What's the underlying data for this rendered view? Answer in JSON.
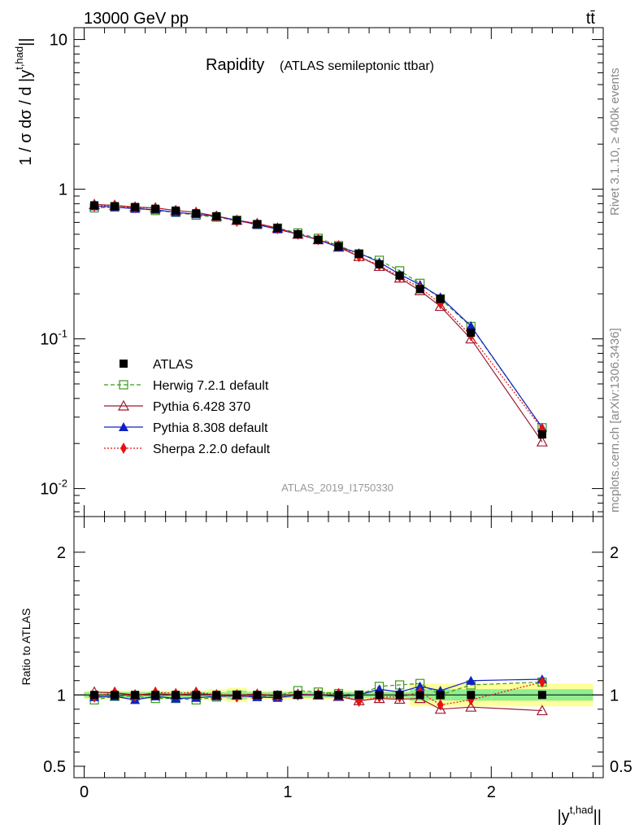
{
  "header": {
    "energy_label": "13000 GeV pp",
    "process_label": "tt̄"
  },
  "side_labels": {
    "rivet": "Rivet 3.1.10, ≥ 400k events",
    "mcplots": "mcplots.cern.ch [arXiv:1306.3436]"
  },
  "colors": {
    "ATLAS": "#000000",
    "Herwig": "#3a9a1a",
    "Pythia6": "#9b1b2f",
    "Pythia8": "#1020c8",
    "Sherpa": "#e81010",
    "band_inner": "#90ee90",
    "band_outer": "#ffff99"
  },
  "chart_data": [
    {
      "type": "line",
      "title": "Rapidity",
      "subtitle": "(ATLAS semileptonic ttbar)",
      "ylabel": "1 / σ dσ / d |y^{t,had}|",
      "xlabel": "",
      "yscale": "log",
      "ylim": [
        0.0065,
        12
      ],
      "xlim": [
        -0.05,
        2.55
      ],
      "ytick_labels": [
        "10^{-2}",
        "10^{-1}",
        "1",
        "10"
      ],
      "watermark": "ATLAS_2019_I1750330",
      "legend_position": "lower-left",
      "x": [
        0.05,
        0.15,
        0.25,
        0.35,
        0.45,
        0.55,
        0.65,
        0.75,
        0.85,
        0.95,
        1.05,
        1.15,
        1.25,
        1.35,
        1.45,
        1.55,
        1.65,
        1.75,
        1.9,
        2.25
      ],
      "series": [
        {
          "name": "ATLAS",
          "marker": "square-filled",
          "values": [
            0.78,
            0.77,
            0.76,
            0.74,
            0.72,
            0.69,
            0.66,
            0.62,
            0.585,
            0.55,
            0.5,
            0.46,
            0.415,
            0.37,
            0.315,
            0.265,
            0.215,
            0.185,
            0.11,
            0.023
          ]
        },
        {
          "name": "Herwig 7.2.1 default",
          "marker": "square-open",
          "dash": "5,3",
          "values": [
            0.75,
            0.76,
            0.75,
            0.72,
            0.7,
            0.67,
            0.65,
            0.62,
            0.58,
            0.55,
            0.51,
            0.47,
            0.42,
            0.37,
            0.335,
            0.285,
            0.235,
            0.185,
            0.121,
            0.0255
          ]
        },
        {
          "name": "Pythia 6.428 370",
          "marker": "triangle-open",
          "values": [
            0.79,
            0.78,
            0.76,
            0.75,
            0.72,
            0.7,
            0.66,
            0.62,
            0.59,
            0.55,
            0.5,
            0.46,
            0.41,
            0.355,
            0.305,
            0.255,
            0.21,
            0.165,
            0.1,
            0.0205
          ]
        },
        {
          "name": "Pythia 8.308 default",
          "marker": "triangle-filled",
          "values": [
            0.77,
            0.76,
            0.74,
            0.73,
            0.7,
            0.68,
            0.66,
            0.62,
            0.58,
            0.54,
            0.5,
            0.46,
            0.41,
            0.375,
            0.325,
            0.27,
            0.23,
            0.19,
            0.122,
            0.0255
          ]
        },
        {
          "name": "Sherpa 2.2.0 default",
          "marker": "diamond-filled",
          "dash": "2,2",
          "values": [
            0.77,
            0.78,
            0.75,
            0.75,
            0.72,
            0.7,
            0.66,
            0.61,
            0.59,
            0.545,
            0.5,
            0.46,
            0.42,
            0.355,
            0.31,
            0.26,
            0.22,
            0.172,
            0.105,
            0.025
          ]
        }
      ]
    },
    {
      "type": "line",
      "title": "",
      "ylabel": "Ratio to ATLAS",
      "xlabel": "|y^{t,had}|",
      "ylim": [
        0.42,
        2.25
      ],
      "xlim": [
        -0.05,
        2.55
      ],
      "ytick_labels": [
        "0.5",
        "1",
        "2"
      ],
      "xtick_labels": [
        "0",
        "1",
        "2"
      ],
      "x": [
        0.05,
        0.15,
        0.25,
        0.35,
        0.45,
        0.55,
        0.65,
        0.75,
        0.85,
        0.95,
        1.05,
        1.15,
        1.25,
        1.35,
        1.45,
        1.55,
        1.65,
        1.75,
        1.9,
        2.25
      ],
      "band": {
        "edges": [
          0.0,
          0.1,
          0.2,
          0.3,
          0.4,
          0.5,
          0.6,
          0.7,
          0.8,
          0.9,
          1.0,
          1.1,
          1.2,
          1.3,
          1.4,
          1.5,
          1.6,
          1.7,
          1.8,
          2.0,
          2.5
        ],
        "inner": [
          0.02,
          0.02,
          0.02,
          0.02,
          0.02,
          0.02,
          0.02,
          0.03,
          0.02,
          0.02,
          0.02,
          0.02,
          0.02,
          0.02,
          0.02,
          0.02,
          0.04,
          0.04,
          0.04,
          0.04
        ],
        "outer": [
          0.03,
          0.03,
          0.03,
          0.03,
          0.03,
          0.03,
          0.04,
          0.05,
          0.03,
          0.03,
          0.03,
          0.03,
          0.03,
          0.03,
          0.03,
          0.03,
          0.08,
          0.08,
          0.08,
          0.08
        ]
      },
      "series": [
        {
          "name": "ATLAS",
          "values": [
            1,
            1,
            1,
            1,
            1,
            1,
            1,
            1,
            1,
            1,
            1,
            1,
            1,
            1,
            1,
            1,
            1,
            1,
            1,
            1
          ]
        },
        {
          "name": "Herwig 7.2.1 default",
          "values": [
            0.965,
            0.99,
            0.99,
            0.975,
            0.975,
            0.965,
            0.985,
            1.0,
            0.99,
            0.995,
            1.03,
            1.02,
            1.01,
            1.0,
            1.06,
            1.07,
            1.08,
            1.0,
            1.07,
            1.09
          ]
        },
        {
          "name": "Pythia 6.428 370",
          "values": [
            1.02,
            1.015,
            1.0,
            1.01,
            1.0,
            1.01,
            1.0,
            1.0,
            1.005,
            0.995,
            1.005,
            1.0,
            0.99,
            0.96,
            0.975,
            0.97,
            0.975,
            0.9,
            0.915,
            0.89
          ]
        },
        {
          "name": "Pythia 8.308 default",
          "values": [
            0.985,
            0.99,
            0.965,
            0.99,
            0.975,
            0.98,
            0.99,
            0.995,
            0.985,
            0.98,
            1.0,
            1.0,
            0.99,
            1.0,
            1.04,
            1.02,
            1.06,
            1.03,
            1.1,
            1.11
          ]
        },
        {
          "name": "Sherpa 2.2.0 default",
          "values": [
            0.985,
            1.02,
            0.99,
            1.02,
            1.01,
            1.02,
            1.0,
            0.985,
            1.0,
            0.99,
            1.0,
            1.005,
            1.01,
            0.955,
            0.985,
            0.985,
            1.02,
            0.93,
            0.965,
            1.09
          ]
        }
      ]
    }
  ]
}
